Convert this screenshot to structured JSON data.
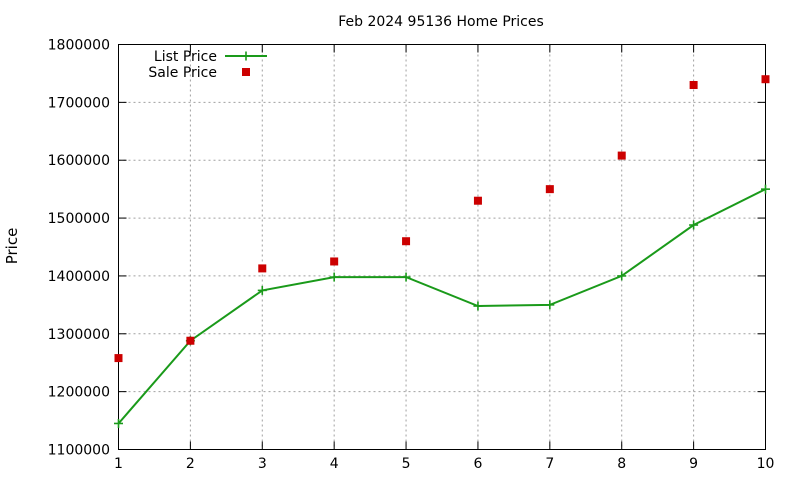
{
  "chart_data": {
    "type": "line",
    "title": "Feb 2024 95136 Home Prices",
    "xlabel": "",
    "ylabel": "Price",
    "x": [
      1,
      2,
      3,
      4,
      5,
      6,
      7,
      8,
      9,
      10
    ],
    "xlim": [
      1,
      10
    ],
    "ylim": [
      1100000,
      1800000
    ],
    "yticks": [
      1100000,
      1200000,
      1300000,
      1400000,
      1500000,
      1600000,
      1700000,
      1800000
    ],
    "xticks": [
      1,
      2,
      3,
      4,
      5,
      6,
      7,
      8,
      9,
      10
    ],
    "grid": true,
    "legend_position": "top-left",
    "series": [
      {
        "name": "List Price",
        "style": "line-with-plus-markers",
        "color": "#1a9a1a",
        "values": [
          1145000,
          1288000,
          1375000,
          1398000,
          1398000,
          1348000,
          1350000,
          1400000,
          1488000,
          1550000
        ]
      },
      {
        "name": "Sale Price",
        "style": "square-points",
        "color": "#cc0000",
        "values": [
          1258000,
          1288000,
          1413000,
          1425000,
          1460000,
          1530000,
          1550000,
          1608000,
          1730000,
          1740000
        ]
      }
    ]
  }
}
